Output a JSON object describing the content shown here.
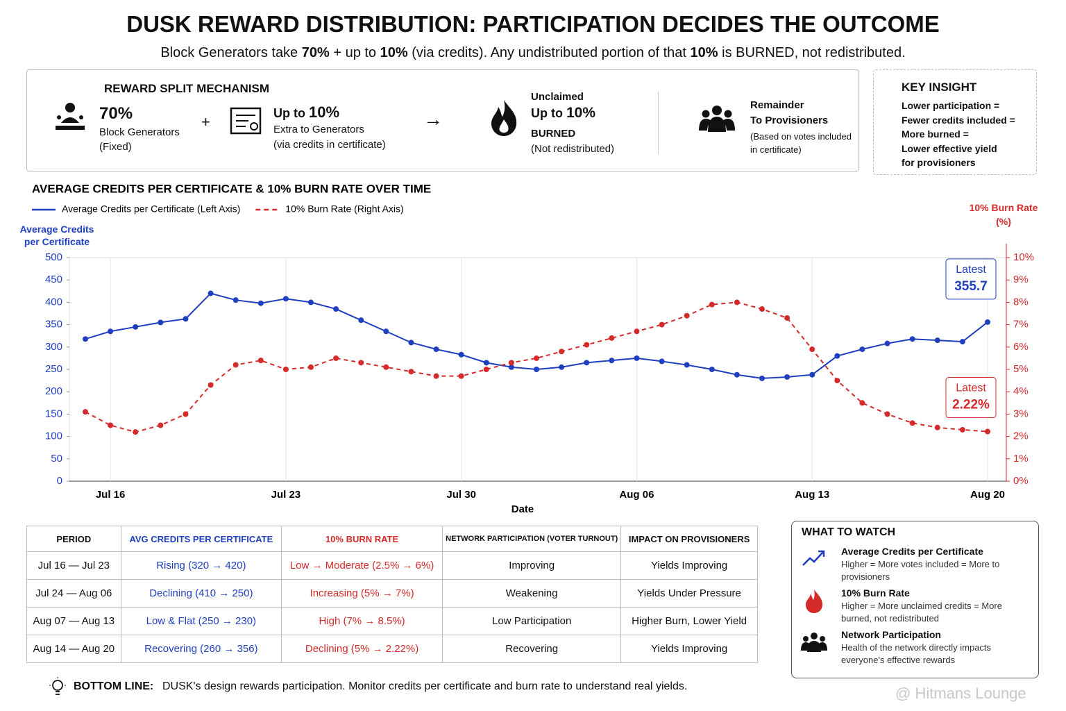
{
  "header": {
    "title": "DUSK REWARD DISTRIBUTION: PARTICIPATION DECIDES THE OUTCOME",
    "subtitle": [
      {
        "text": "Block Generators take ",
        "bold": false
      },
      {
        "text": "70%",
        "bold": true
      },
      {
        "text": " + up to ",
        "bold": false
      },
      {
        "text": "10%",
        "bold": true
      },
      {
        "text": " (via credits). Any undistributed portion of that ",
        "bold": false
      },
      {
        "text": "10%",
        "bold": true
      },
      {
        "text": " is BURNED, not redistributed.",
        "bold": false
      }
    ]
  },
  "mechanism": {
    "heading": "REWARD SPLIT MECHANISM",
    "operators": [
      "+",
      "→"
    ],
    "items": [
      {
        "value": "70%",
        "label": "Block Generators",
        "note": "(Fixed)"
      },
      {
        "prefix": "Up to",
        "value": "10%",
        "label": "Extra to Generators",
        "note": "(via credits in certificate)"
      },
      {
        "top": "Unclaimed",
        "prefix": "Up to",
        "value": "10%",
        "label": "BURNED",
        "note": "(Not redistributed)"
      },
      {
        "label": "Remainder",
        "sub": "To Provisioners",
        "note": "(Based on votes included in certificate)"
      }
    ]
  },
  "insight": {
    "title": "KEY INSIGHT",
    "lines": [
      "Lower participation =",
      "Fewer credits included =",
      "More burned =",
      "Lower effective yield",
      "for provisioners"
    ]
  },
  "chart_data": {
    "type": "line",
    "title": "AVERAGE CREDITS PER CERTIFICATE & 10% BURN RATE OVER TIME",
    "x_label": "Date",
    "y_label": "Average Credits per Certificate",
    "y2_label": "10% Burn Rate (%)",
    "latest_label": "Latest",
    "grid": "x",
    "categories": [
      null,
      "Jul 16",
      null,
      null,
      null,
      null,
      null,
      null,
      "Jul 23",
      null,
      null,
      null,
      null,
      null,
      null,
      "Jul 30",
      null,
      null,
      null,
      null,
      null,
      null,
      "Aug 06",
      null,
      null,
      null,
      null,
      null,
      null,
      "Aug 13",
      null,
      null,
      null,
      null,
      null,
      null,
      "Aug 20"
    ],
    "series": [
      {
        "name": "Average Credits per Certificate (Left Axis)",
        "color": "#1f3fbf",
        "style": "solid",
        "values": [
          318,
          335,
          345,
          355,
          363,
          420,
          405,
          398,
          408,
          400,
          385,
          360,
          335,
          310,
          295,
          283,
          265,
          255,
          250,
          255,
          265,
          270,
          275,
          268,
          260,
          250,
          238,
          230,
          233,
          238,
          280,
          295,
          308,
          318,
          315,
          312,
          355.7
        ]
      },
      {
        "name": "10% Burn Rate (Right Axis)",
        "color": "#d42a2a",
        "style": "dashed",
        "axis": "y2",
        "values": [
          3.1,
          2.5,
          2.2,
          2.5,
          3.0,
          4.3,
          5.2,
          5.4,
          5.0,
          5.1,
          5.5,
          5.3,
          5.1,
          4.9,
          4.7,
          4.7,
          5.0,
          5.3,
          5.5,
          5.8,
          6.1,
          6.4,
          6.7,
          7.0,
          7.4,
          7.9,
          8.0,
          7.7,
          7.3,
          5.9,
          4.5,
          3.5,
          3.0,
          2.6,
          2.4,
          2.3,
          2.22
        ],
        "value_labels": [
          null,
          null,
          null,
          null,
          null,
          null,
          null,
          null,
          null,
          null,
          null,
          null,
          null,
          null,
          null,
          null,
          null,
          null,
          null,
          null,
          null,
          null,
          null,
          null,
          null,
          null,
          null,
          null,
          null,
          null,
          null,
          null,
          null,
          null,
          null,
          null,
          "2.22%"
        ]
      }
    ],
    "ylim": [
      0,
      500
    ],
    "yticks": [
      0,
      50,
      100,
      150,
      200,
      250,
      300,
      350,
      400,
      450,
      500
    ],
    "y2lim": [
      0,
      10
    ],
    "y2ticks": [
      {
        "value": 0,
        "label": "0%"
      },
      {
        "value": 1,
        "label": "1%"
      },
      {
        "value": 2,
        "label": "2%"
      },
      {
        "value": 3,
        "label": "3%"
      },
      {
        "value": 4,
        "label": "4%"
      },
      {
        "value": 5,
        "label": "5%"
      },
      {
        "value": 6,
        "label": "6%"
      },
      {
        "value": 7,
        "label": "7%"
      },
      {
        "value": 8,
        "label": "8%"
      },
      {
        "value": 9,
        "label": "9%"
      },
      {
        "value": 10,
        "label": "10%"
      }
    ]
  },
  "table": {
    "header": [
      "PERIOD",
      "AVG CREDITS PER CERTIFICATE",
      "10% BURN RATE",
      "NETWORK PARTICIPATION (VOTER TURNOUT)",
      "IMPACT ON PROVISIONERS"
    ],
    "rows": [
      [
        "Jul 16 — Jul 23",
        "Rising (320 → 420)",
        "Low → Moderate (2.5% → 6%)",
        "Improving",
        "Yields Improving"
      ],
      [
        "Jul 24 — Aug 06",
        "Declining (410 → 250)",
        "Increasing (5% → 7%)",
        "Weakening",
        "Yields Under Pressure"
      ],
      [
        "Aug 07 — Aug 13",
        "Low & Flat (250 → 230)",
        "High (7% → 8.5%)",
        "Low Participation",
        "Higher Burn, Lower Yield"
      ],
      [
        "Aug 14 — Aug 20",
        "Recovering (260 → 356)",
        "Declining (5% → 2.22%)",
        "Recovering",
        "Yields Improving"
      ]
    ]
  },
  "watch": {
    "title": "WHAT TO WATCH",
    "items": [
      {
        "title": "Average Credits per Certificate",
        "text": "Higher = More votes included = More to provisioners"
      },
      {
        "title": "10% Burn Rate",
        "text": "Higher = More unclaimed credits = More burned, not redistributed"
      },
      {
        "title": "Network Participation",
        "text": "Health of the network directly impacts everyone's effective rewards"
      }
    ]
  },
  "bottom_line": {
    "label": "BOTTOM LINE:",
    "text": "DUSK's design rewards participation.  Monitor credits per certificate and burn rate to understand real yields."
  },
  "watermark": "@ Hitmans Lounge"
}
